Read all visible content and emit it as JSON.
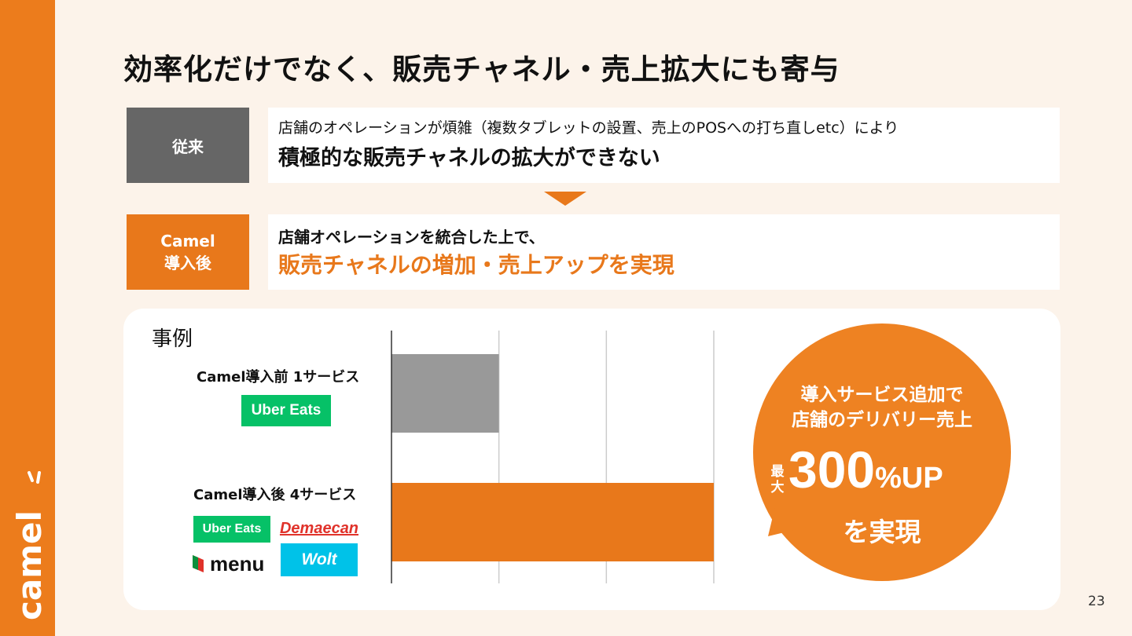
{
  "slide": {
    "title": "効率化だけでなく、販売チャネル・売上拡大にも寄与",
    "page_number": "23",
    "logo_text": "camel"
  },
  "before": {
    "label": "従来",
    "line1": "店舗のオペレーションが煩雑（複数タブレットの設置、売上のPOSへの打ち直しetc）により",
    "line2": "積極的な販売チャネルの拡大ができない"
  },
  "after": {
    "label_line1": "Camel",
    "label_line2": "導入後",
    "line1": "店舗オペレーションを統合した上で、",
    "line2": "販売チャネルの増加・売上アップを実現"
  },
  "case": {
    "title": "事例",
    "before_label": "Camel導入前 1サービス",
    "after_label": "Camel導入後 4サービス",
    "services_before": [
      "Uber Eats"
    ],
    "services_after": [
      "Uber Eats",
      "Demaecan",
      "menu",
      "Wolt"
    ]
  },
  "chart_data": {
    "type": "bar",
    "orientation": "horizontal",
    "categories": [
      "Camel導入前 1サービス",
      "Camel導入後 4サービス"
    ],
    "values": [
      1,
      3
    ],
    "xlim": [
      0,
      3
    ],
    "grid": true,
    "colors": [
      "#999999",
      "#e8781b"
    ]
  },
  "callout": {
    "line1": "導入サービス追加で",
    "line2": "店舗のデリバリー売上",
    "prefix": "最大",
    "number": "300",
    "suffix": "%UP",
    "line3": "を実現"
  },
  "colors": {
    "accent": "#e8781b",
    "sidebar": "#ec7c1c",
    "uber": "#06c167",
    "wolt": "#00c2e8",
    "demaecan": "#e0322a"
  }
}
